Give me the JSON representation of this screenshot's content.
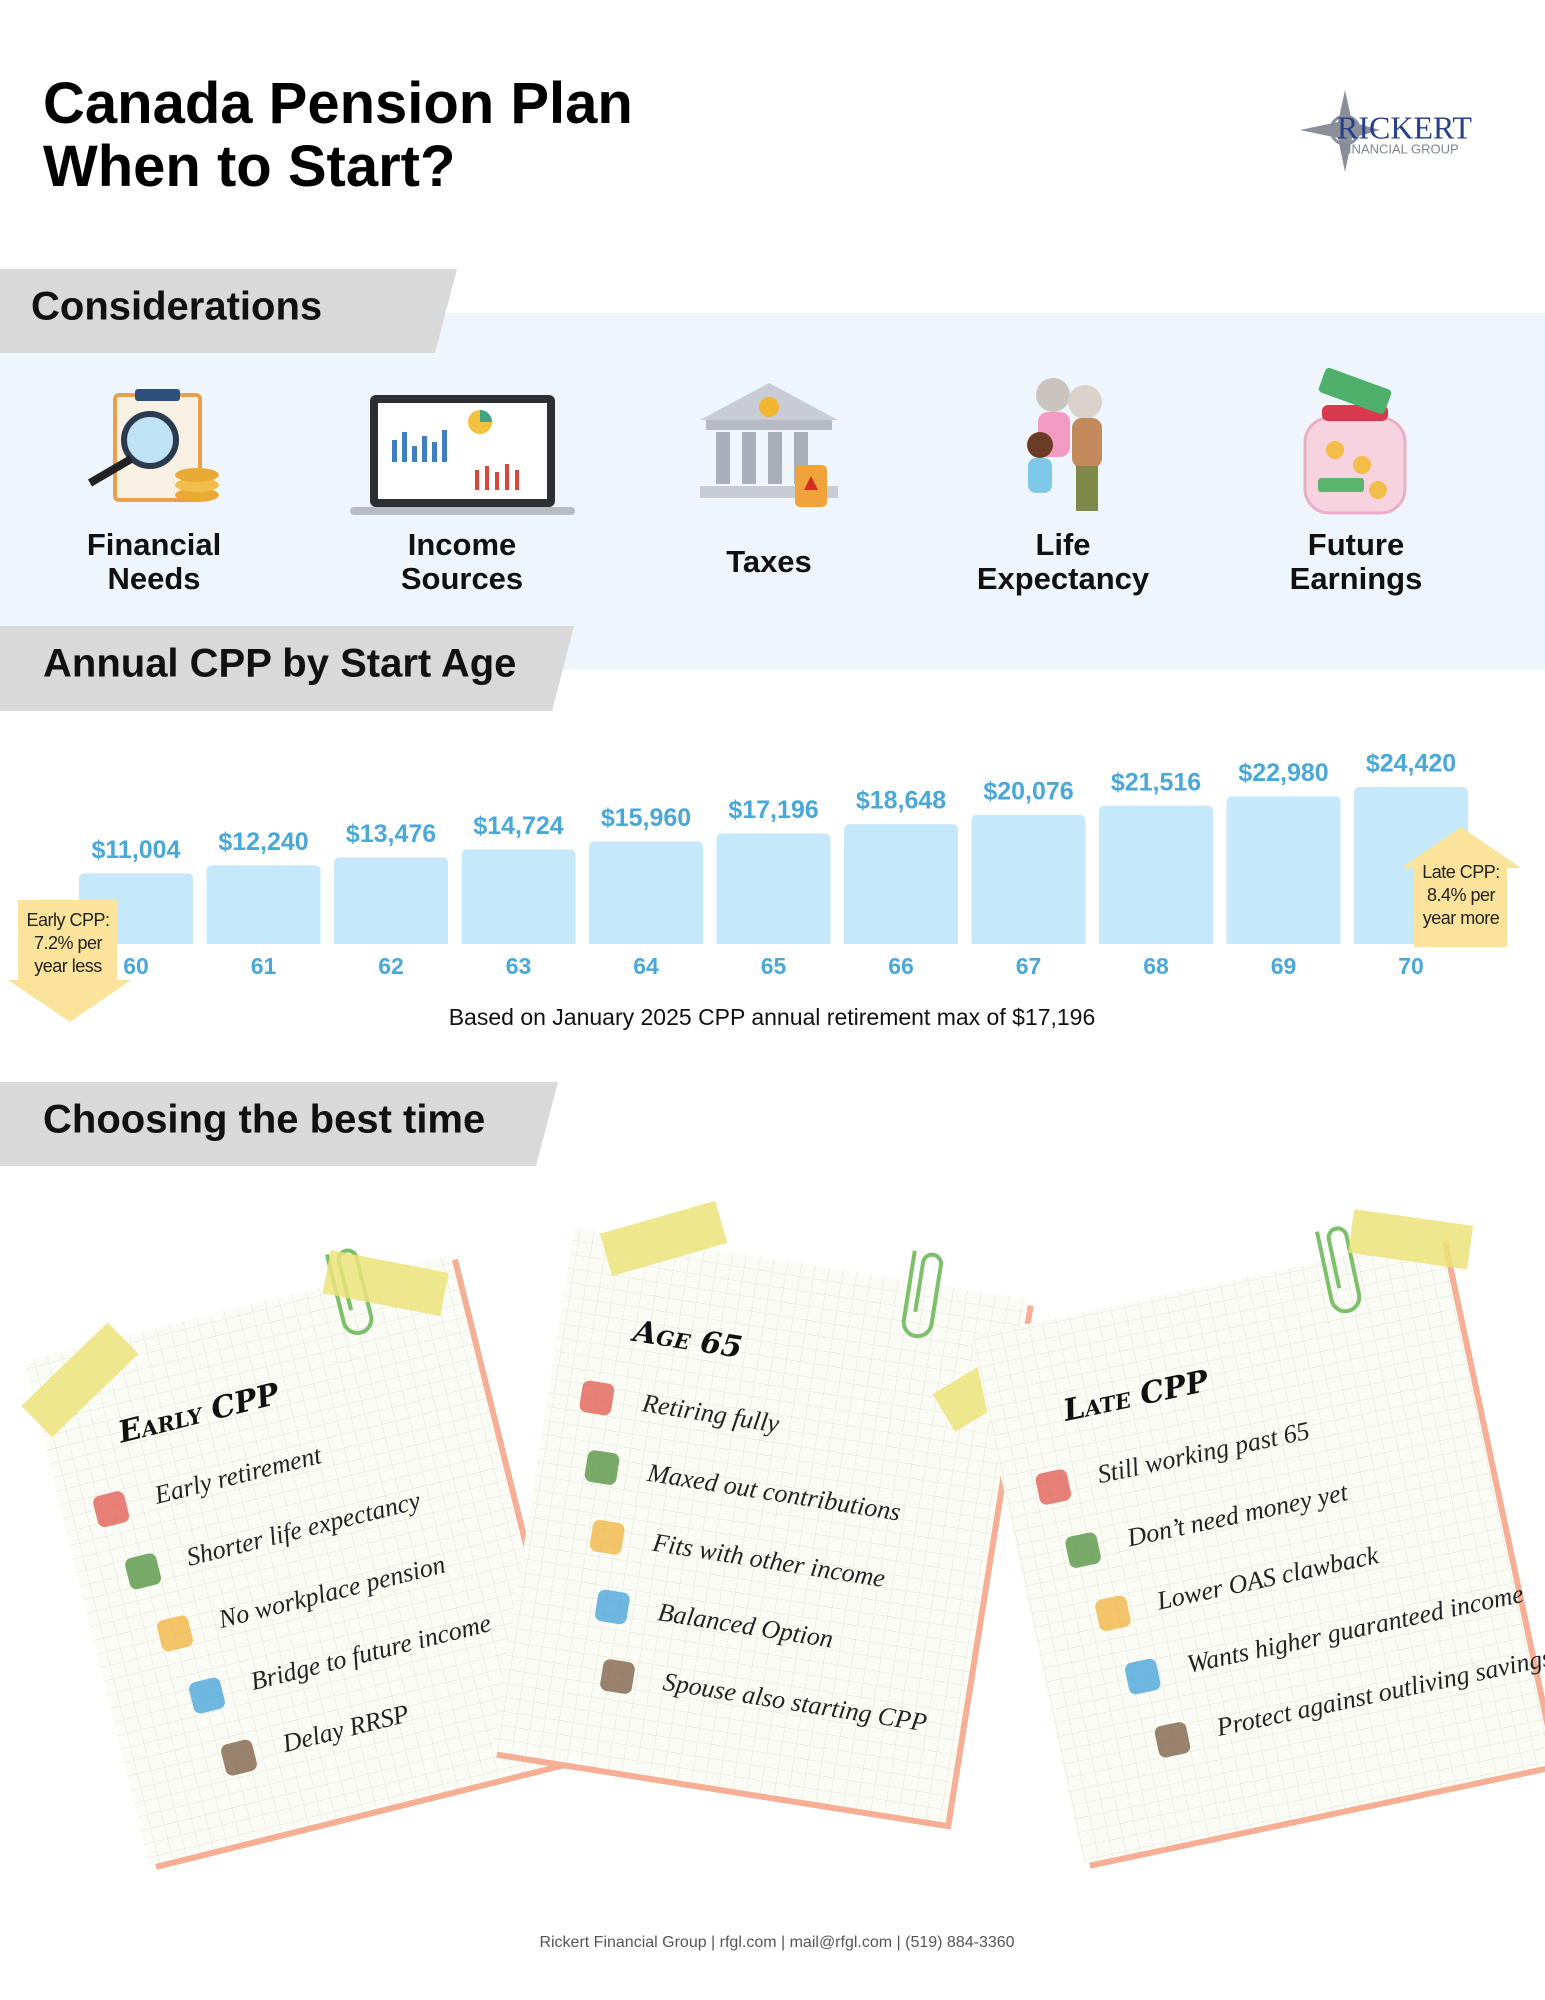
{
  "header": {
    "title_lines": [
      "Canada Pension Plan",
      "When to Start?"
    ],
    "logo": {
      "name": "RICKERT",
      "subtitle": "FINANCIAL GROUP"
    }
  },
  "considerations": {
    "heading": "Considerations",
    "items": [
      [
        "Financial",
        "Needs"
      ],
      [
        "Income",
        "Sources"
      ],
      [
        "Taxes"
      ],
      [
        "Life",
        "Expectancy"
      ],
      [
        "Future",
        "Earnings"
      ]
    ]
  },
  "chart_data": {
    "type": "bar",
    "title": "Annual CPP by Start Age",
    "categories": [
      "60",
      "61",
      "62",
      "63",
      "64",
      "65",
      "66",
      "67",
      "68",
      "69",
      "70"
    ],
    "values": [
      11004,
      12240,
      13476,
      14724,
      15960,
      17196,
      18648,
      20076,
      21516,
      22980,
      24420
    ],
    "value_labels": [
      "$11,004",
      "$12,240",
      "$13,476",
      "$14,724",
      "$15,960",
      "$17,196",
      "$18,648",
      "$20,076",
      "$21,516",
      "$22,980",
      "$24,420"
    ],
    "color": "#c6e8fb",
    "label_color": "#4aa8d8",
    "annotations": [
      {
        "lines": [
          "Early CPP:",
          "7.2% per",
          "year less"
        ]
      },
      {
        "lines": [
          "Late CPP:",
          "8.4% per",
          "year more"
        ]
      }
    ],
    "note": "Based on January 2025 CPP annual retirement max of $17,196"
  },
  "choosing": {
    "heading": "Choosing the best time",
    "cards": [
      {
        "title": "Early CPP",
        "items": [
          "Early retirement",
          "Shorter life expectancy",
          "No workplace pension",
          "Bridge to future income",
          "Delay RRSP"
        ]
      },
      {
        "title": "Age 65",
        "items": [
          "Retiring fully",
          "Maxed out contributions",
          "Fits with other income",
          "Balanced Option",
          "Spouse also starting CPP"
        ]
      },
      {
        "title": "Late CPP",
        "items": [
          "Still working past 65",
          "Don’t need money yet",
          "Lower OAS clawback",
          "Wants higher guaranteed income",
          "Protect against outliving savings"
        ]
      }
    ]
  },
  "footer": "Rickert Financial Group | rfgl.com | mail@rfgl.com | (519) 884-3360"
}
